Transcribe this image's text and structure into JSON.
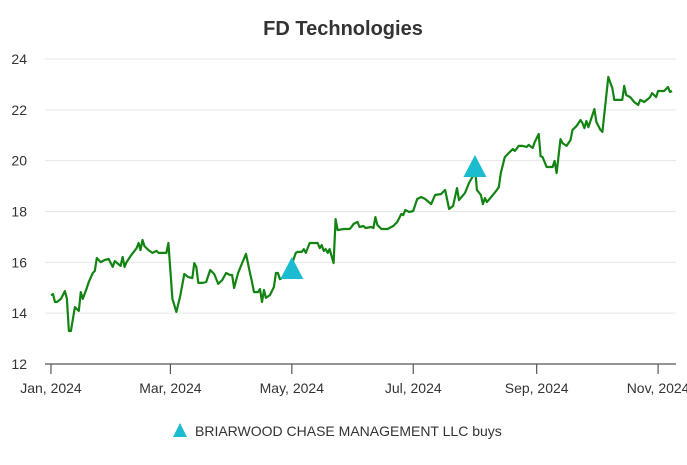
{
  "chart_data": {
    "type": "line",
    "title": "FD Technologies",
    "xlabel": "",
    "ylabel": "",
    "ylim": [
      12,
      24
    ],
    "xlim": [
      "2023-12-29",
      "2024-11-10"
    ],
    "grid": true,
    "yticks": [
      12,
      14,
      16,
      18,
      20,
      22,
      24
    ],
    "ytick_labels": [
      "12",
      "14",
      "16",
      "18",
      "20",
      "22",
      "24"
    ],
    "xticks": [
      "2024-01-01",
      "2024-03-01",
      "2024-05-01",
      "2024-07-01",
      "2024-09-01",
      "2024-11-01"
    ],
    "xtick_labels": [
      "Jan, 2024",
      "Mar, 2024",
      "May, 2024",
      "Jul, 2024",
      "Sep, 2024",
      "Nov, 2024"
    ],
    "colors": {
      "line": "#138413",
      "marker": "#1bbccf",
      "grid": "#e6e6e6",
      "axis": "#555555",
      "text": "#333333"
    },
    "series": [
      {
        "name": "FD Technologies",
        "x": [
          "2024-01-01",
          "2024-01-02",
          "2024-01-03",
          "2024-01-04",
          "2024-01-06",
          "2024-01-08",
          "2024-01-09",
          "2024-01-10",
          "2024-01-11",
          "2024-01-13",
          "2024-01-14",
          "2024-01-15",
          "2024-01-16",
          "2024-01-17",
          "2024-01-19",
          "2024-01-20",
          "2024-01-22",
          "2024-01-23",
          "2024-01-24",
          "2024-01-26",
          "2024-01-28",
          "2024-01-30",
          "2024-02-01",
          "2024-02-02",
          "2024-02-05",
          "2024-02-06",
          "2024-02-07",
          "2024-02-08",
          "2024-02-10",
          "2024-02-13",
          "2024-02-14",
          "2024-02-15",
          "2024-02-16",
          "2024-02-17",
          "2024-02-19",
          "2024-02-21",
          "2024-02-23",
          "2024-02-24",
          "2024-02-28",
          "2024-02-29",
          "2024-03-02",
          "2024-03-04",
          "2024-03-06",
          "2024-03-08",
          "2024-03-10",
          "2024-03-12",
          "2024-03-13",
          "2024-03-14",
          "2024-03-15",
          "2024-03-17",
          "2024-03-19",
          "2024-03-21",
          "2024-03-23",
          "2024-03-25",
          "2024-03-27",
          "2024-03-29",
          "2024-03-31",
          "2024-04-01",
          "2024-04-02",
          "2024-04-04",
          "2024-04-06",
          "2024-04-08",
          "2024-04-10",
          "2024-04-11",
          "2024-04-12",
          "2024-04-14",
          "2024-04-15",
          "2024-04-16",
          "2024-04-17",
          "2024-04-18",
          "2024-04-20",
          "2024-04-22",
          "2024-04-23",
          "2024-04-24",
          "2024-04-25",
          "2024-04-26",
          "2024-04-30",
          "2024-05-03",
          "2024-05-04",
          "2024-05-06",
          "2024-05-07",
          "2024-05-08",
          "2024-05-10",
          "2024-05-12",
          "2024-05-14",
          "2024-05-15",
          "2024-05-16",
          "2024-05-17",
          "2024-05-18",
          "2024-05-19",
          "2024-05-20",
          "2024-05-22",
          "2024-05-23",
          "2024-05-24",
          "2024-05-27",
          "2024-05-30",
          "2024-05-31",
          "2024-06-01",
          "2024-06-03",
          "2024-06-04",
          "2024-06-06",
          "2024-06-07",
          "2024-06-10",
          "2024-06-11",
          "2024-06-12",
          "2024-06-13",
          "2024-06-15",
          "2024-06-18",
          "2024-06-19",
          "2024-06-21",
          "2024-06-23",
          "2024-06-25",
          "2024-06-26",
          "2024-06-27",
          "2024-06-29",
          "2024-07-01",
          "2024-07-03",
          "2024-07-05",
          "2024-07-07",
          "2024-07-10",
          "2024-07-12",
          "2024-07-15",
          "2024-07-17",
          "2024-07-19",
          "2024-07-21",
          "2024-07-23",
          "2024-07-24",
          "2024-07-27",
          "2024-07-29",
          "2024-07-31",
          "2024-08-01",
          "2024-08-02",
          "2024-08-04",
          "2024-08-05",
          "2024-08-06",
          "2024-08-07",
          "2024-08-10",
          "2024-08-12",
          "2024-08-13",
          "2024-08-14",
          "2024-08-16",
          "2024-08-18",
          "2024-08-20",
          "2024-08-21",
          "2024-08-23",
          "2024-08-25",
          "2024-08-27",
          "2024-08-28",
          "2024-08-30",
          "2024-08-31",
          "2024-09-02",
          "2024-09-03",
          "2024-09-04",
          "2024-09-06",
          "2024-09-09",
          "2024-09-10",
          "2024-09-11",
          "2024-09-13",
          "2024-09-14",
          "2024-09-16",
          "2024-09-18",
          "2024-09-19",
          "2024-09-21",
          "2024-09-23",
          "2024-09-24",
          "2024-09-25",
          "2024-09-26",
          "2024-09-27",
          "2024-09-30",
          "2024-10-01",
          "2024-10-03",
          "2024-10-04",
          "2024-10-07",
          "2024-10-09",
          "2024-10-10",
          "2024-10-14",
          "2024-10-15",
          "2024-10-16",
          "2024-10-18",
          "2024-10-20",
          "2024-10-22",
          "2024-10-23",
          "2024-10-25",
          "2024-10-27",
          "2024-10-28",
          "2024-10-29",
          "2024-10-31",
          "2024-11-01",
          "2024-11-04",
          "2024-11-06",
          "2024-11-07",
          "2024-11-08"
        ],
        "y": [
          14.71,
          14.75,
          14.44,
          14.44,
          14.56,
          14.87,
          14.56,
          13.3,
          13.3,
          14.24,
          14.16,
          14.09,
          14.83,
          14.56,
          14.99,
          15.23,
          15.58,
          15.66,
          16.17,
          16.01,
          16.09,
          16.13,
          15.82,
          16.05,
          15.86,
          16.21,
          15.82,
          16.01,
          16.25,
          16.56,
          16.76,
          16.48,
          16.88,
          16.64,
          16.48,
          16.37,
          16.45,
          16.37,
          16.37,
          16.76,
          14.56,
          14.05,
          14.71,
          15.54,
          15.42,
          15.38,
          15.97,
          15.82,
          15.19,
          15.19,
          15.23,
          15.7,
          15.54,
          15.15,
          15.3,
          15.58,
          15.5,
          15.5,
          14.99,
          15.58,
          15.97,
          16.33,
          15.58,
          15.23,
          14.83,
          14.83,
          14.95,
          14.44,
          14.91,
          14.6,
          14.71,
          15.03,
          15.58,
          15.58,
          15.34,
          15.38,
          15.7,
          16.37,
          16.41,
          16.41,
          16.52,
          16.37,
          16.76,
          16.76,
          16.76,
          16.56,
          16.68,
          16.45,
          16.52,
          16.37,
          16.52,
          15.97,
          17.7,
          17.27,
          17.31,
          17.31,
          17.39,
          17.51,
          17.59,
          17.39,
          17.43,
          17.35,
          17.39,
          17.35,
          17.78,
          17.47,
          17.31,
          17.31,
          17.35,
          17.43,
          17.59,
          17.9,
          17.86,
          18.06,
          17.98,
          18.02,
          18.49,
          18.57,
          18.49,
          18.29,
          18.65,
          18.69,
          18.85,
          18.1,
          18.22,
          18.92,
          18.45,
          18.73,
          19.12,
          19.4,
          19.71,
          18.85,
          18.65,
          18.29,
          18.53,
          18.37,
          18.65,
          18.85,
          18.96,
          19.51,
          20.14,
          20.3,
          20.46,
          20.38,
          20.58,
          20.58,
          20.54,
          20.62,
          20.5,
          20.73,
          21.05,
          20.18,
          20.14,
          19.75,
          19.75,
          19.99,
          19.51,
          20.85,
          20.69,
          20.58,
          20.81,
          21.21,
          21.36,
          21.6,
          21.48,
          21.28,
          21.56,
          21.32,
          22.03,
          21.52,
          21.21,
          21.13,
          23.29,
          22.86,
          22.39,
          22.39,
          22.94,
          22.58,
          22.5,
          22.31,
          22.19,
          22.39,
          22.31,
          22.43,
          22.5,
          22.66,
          22.5,
          22.74,
          22.74,
          22.9,
          22.7,
          22.74
        ]
      }
    ],
    "markers": {
      "name": "BRIARWOOD CHASE MANAGEMENT LLC buys",
      "shape": "triangle-up",
      "points": [
        {
          "x": "2024-05-01",
          "y": 15.7
        },
        {
          "x": "2024-08-01",
          "y": 19.71
        }
      ]
    },
    "legend": {
      "position": "bottom-center",
      "entries": [
        "BRIARWOOD CHASE MANAGEMENT LLC buys"
      ]
    }
  }
}
